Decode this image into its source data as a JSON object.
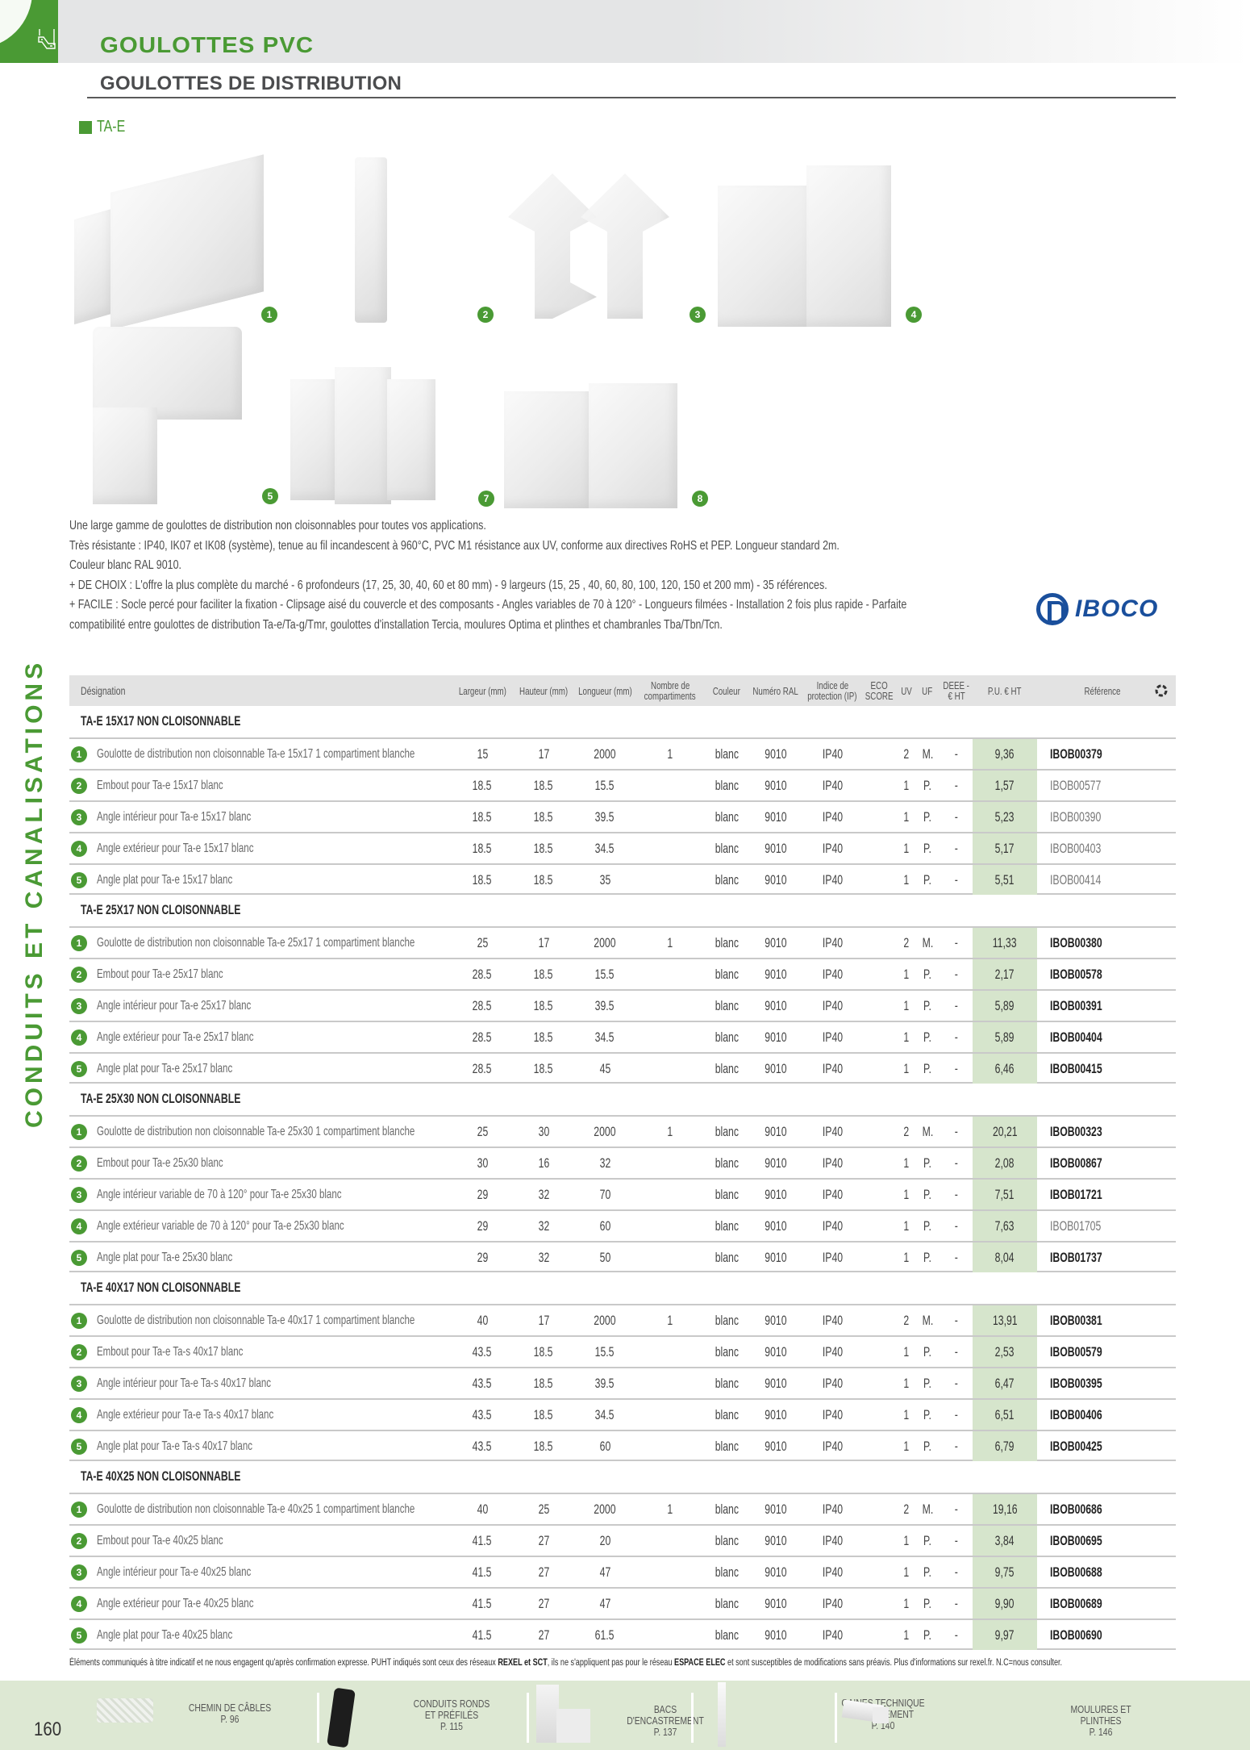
{
  "header": {
    "category_title": "GOULOTTES PVC",
    "section_title": "GOULOTTES DE DISTRIBUTION",
    "product_line": "TA-E",
    "side_label": "CONDUITS ET CANALISATIONS",
    "colors": {
      "brand_green": "#4a9a34",
      "price_bg": "#d6e5cc",
      "header_gray": "#e3e3e3",
      "iboco_blue": "#1a4f9c"
    }
  },
  "images": [
    {
      "badge": "1",
      "icon": "goulotte-image"
    },
    {
      "badge": "2",
      "icon": "embout-image"
    },
    {
      "badge": "3",
      "icon": "angle-interieur-image"
    },
    {
      "badge": "4",
      "icon": "angle-exterieur-image"
    },
    {
      "badge": "5",
      "icon": "angle-plat-image"
    },
    {
      "badge": "7",
      "icon": "angle-interieur-variable-image"
    },
    {
      "badge": "8",
      "icon": "angle-exterieur-variable-image"
    }
  ],
  "description": [
    "Une large gamme de goulottes de distribution non cloisonnables pour toutes vos applications.",
    "Très résistante : IP40, IK07 et IK08 (système), tenue au fil incandescent à 960°C, PVC M1 résistance aux UV, conforme aux directives RoHS et PEP. Longueur standard 2m.",
    "Couleur blanc RAL 9010.",
    "+ DE CHOIX : L'offre la plus complète du marché - 6 profondeurs (17, 25, 30, 40, 60 et 80 mm) - 9 largeurs (15, 25 , 40, 60, 80, 100, 120, 150 et 200 mm) - 35 références.",
    "+ FACILE : Socle percé pour faciliter la fixation - Clipsage aisé du couvercle et des composants - Angles variables de 70 à 120° - Longueurs filmées - Installation 2 fois plus rapide - Parfaite",
    "compatibilité entre goulottes de distribution Ta-e/Ta-g/Tmr, goulottes d'installation Tercia, moulures Optima et plinthes et chambranles Tba/Tbn/Tcn."
  ],
  "brand": {
    "name": "IBOCO"
  },
  "table": {
    "columns": {
      "designation": "Désignation",
      "largeur": "Largeur (mm)",
      "hauteur": "Hauteur (mm)",
      "longueur": "Longueur (mm)",
      "compartiments_1": "Nombre de",
      "compartiments_2": "compartiments",
      "couleur": "Couleur",
      "ral": "Numéro RAL",
      "ip_1": "Indice de",
      "ip_2": "protection (IP)",
      "eco_1": "ECO",
      "eco_2": "SCORE",
      "uv": "UV",
      "uf": "UF",
      "deee_1": "DEEE -",
      "deee_2": "€ HT",
      "pu": "P.U. € HT",
      "reference": "Référence"
    },
    "groups": [
      {
        "title": "TA-E 15X17 NON CLOISONNABLE",
        "rows": [
          {
            "n": "1",
            "designation": "Goulotte de distribution non cloisonnable Ta-e 15x17 1 compartiment blanche",
            "largeur": "15",
            "hauteur": "17",
            "longueur": "2000",
            "compartiments": "1",
            "couleur": "blanc",
            "ral": "9010",
            "ip": "IP40",
            "eco": "",
            "uv": "2",
            "uf": "M.",
            "deee": "-",
            "pu": "9,36",
            "reference": "IBOB00379",
            "ref_bold": true
          },
          {
            "n": "2",
            "designation": "Embout pour Ta-e 15x17 blanc",
            "largeur": "18.5",
            "hauteur": "18.5",
            "longueur": "15.5",
            "compartiments": "",
            "couleur": "blanc",
            "ral": "9010",
            "ip": "IP40",
            "eco": "",
            "uv": "1",
            "uf": "P.",
            "deee": "-",
            "pu": "1,57",
            "reference": "IBOB00577",
            "ref_bold": false
          },
          {
            "n": "3",
            "designation": "Angle intérieur pour Ta-e 15x17 blanc",
            "largeur": "18.5",
            "hauteur": "18.5",
            "longueur": "39.5",
            "compartiments": "",
            "couleur": "blanc",
            "ral": "9010",
            "ip": "IP40",
            "eco": "",
            "uv": "1",
            "uf": "P.",
            "deee": "-",
            "pu": "5,23",
            "reference": "IBOB00390",
            "ref_bold": false
          },
          {
            "n": "4",
            "designation": "Angle extérieur pour Ta-e 15x17 blanc",
            "largeur": "18.5",
            "hauteur": "18.5",
            "longueur": "34.5",
            "compartiments": "",
            "couleur": "blanc",
            "ral": "9010",
            "ip": "IP40",
            "eco": "",
            "uv": "1",
            "uf": "P.",
            "deee": "-",
            "pu": "5,17",
            "reference": "IBOB00403",
            "ref_bold": false
          },
          {
            "n": "5",
            "designation": "Angle plat pour Ta-e 15x17 blanc",
            "largeur": "18.5",
            "hauteur": "18.5",
            "longueur": "35",
            "compartiments": "",
            "couleur": "blanc",
            "ral": "9010",
            "ip": "IP40",
            "eco": "",
            "uv": "1",
            "uf": "P.",
            "deee": "-",
            "pu": "5,51",
            "reference": "IBOB00414",
            "ref_bold": false
          }
        ]
      },
      {
        "title": "TA-E 25X17 NON CLOISONNABLE",
        "rows": [
          {
            "n": "1",
            "designation": "Goulotte de distribution non cloisonnable Ta-e 25x17 1 compartiment blanche",
            "largeur": "25",
            "hauteur": "17",
            "longueur": "2000",
            "compartiments": "1",
            "couleur": "blanc",
            "ral": "9010",
            "ip": "IP40",
            "eco": "",
            "uv": "2",
            "uf": "M.",
            "deee": "-",
            "pu": "11,33",
            "reference": "IBOB00380",
            "ref_bold": true
          },
          {
            "n": "2",
            "designation": "Embout pour Ta-e 25x17 blanc",
            "largeur": "28.5",
            "hauteur": "18.5",
            "longueur": "15.5",
            "compartiments": "",
            "couleur": "blanc",
            "ral": "9010",
            "ip": "IP40",
            "eco": "",
            "uv": "1",
            "uf": "P.",
            "deee": "-",
            "pu": "2,17",
            "reference": "IBOB00578",
            "ref_bold": true
          },
          {
            "n": "3",
            "designation": "Angle intérieur pour Ta-e 25x17 blanc",
            "largeur": "28.5",
            "hauteur": "18.5",
            "longueur": "39.5",
            "compartiments": "",
            "couleur": "blanc",
            "ral": "9010",
            "ip": "IP40",
            "eco": "",
            "uv": "1",
            "uf": "P.",
            "deee": "-",
            "pu": "5,89",
            "reference": "IBOB00391",
            "ref_bold": true
          },
          {
            "n": "4",
            "designation": "Angle extérieur pour Ta-e 25x17 blanc",
            "largeur": "28.5",
            "hauteur": "18.5",
            "longueur": "34.5",
            "compartiments": "",
            "couleur": "blanc",
            "ral": "9010",
            "ip": "IP40",
            "eco": "",
            "uv": "1",
            "uf": "P.",
            "deee": "-",
            "pu": "5,89",
            "reference": "IBOB00404",
            "ref_bold": true
          },
          {
            "n": "5",
            "designation": "Angle plat pour Ta-e 25x17 blanc",
            "largeur": "28.5",
            "hauteur": "18.5",
            "longueur": "45",
            "compartiments": "",
            "couleur": "blanc",
            "ral": "9010",
            "ip": "IP40",
            "eco": "",
            "uv": "1",
            "uf": "P.",
            "deee": "-",
            "pu": "6,46",
            "reference": "IBOB00415",
            "ref_bold": true
          }
        ]
      },
      {
        "title": "TA-E 25X30 NON CLOISONNABLE",
        "rows": [
          {
            "n": "1",
            "designation": "Goulotte de distribution non cloisonnable Ta-e 25x30 1 compartiment blanche",
            "largeur": "25",
            "hauteur": "30",
            "longueur": "2000",
            "compartiments": "1",
            "couleur": "blanc",
            "ral": "9010",
            "ip": "IP40",
            "eco": "",
            "uv": "2",
            "uf": "M.",
            "deee": "-",
            "pu": "20,21",
            "reference": "IBOB00323",
            "ref_bold": true
          },
          {
            "n": "2",
            "designation": "Embout pour Ta-e 25x30 blanc",
            "largeur": "30",
            "hauteur": "16",
            "longueur": "32",
            "compartiments": "",
            "couleur": "blanc",
            "ral": "9010",
            "ip": "IP40",
            "eco": "",
            "uv": "1",
            "uf": "P.",
            "deee": "-",
            "pu": "2,08",
            "reference": "IBOB00867",
            "ref_bold": true
          },
          {
            "n": "3",
            "designation": "Angle intérieur variable de 70 à 120° pour Ta-e 25x30 blanc",
            "largeur": "29",
            "hauteur": "32",
            "longueur": "70",
            "compartiments": "",
            "couleur": "blanc",
            "ral": "9010",
            "ip": "IP40",
            "eco": "",
            "uv": "1",
            "uf": "P.",
            "deee": "-",
            "pu": "7,51",
            "reference": "IBOB01721",
            "ref_bold": true
          },
          {
            "n": "4",
            "designation": "Angle extérieur variable de 70 à 120° pour Ta-e 25x30 blanc",
            "largeur": "29",
            "hauteur": "32",
            "longueur": "60",
            "compartiments": "",
            "couleur": "blanc",
            "ral": "9010",
            "ip": "IP40",
            "eco": "",
            "uv": "1",
            "uf": "P.",
            "deee": "-",
            "pu": "7,63",
            "reference": "IBOB01705",
            "ref_bold": false
          },
          {
            "n": "5",
            "designation": "Angle plat pour Ta-e 25x30 blanc",
            "largeur": "29",
            "hauteur": "32",
            "longueur": "50",
            "compartiments": "",
            "couleur": "blanc",
            "ral": "9010",
            "ip": "IP40",
            "eco": "",
            "uv": "1",
            "uf": "P.",
            "deee": "-",
            "pu": "8,04",
            "reference": "IBOB01737",
            "ref_bold": true
          }
        ]
      },
      {
        "title": "TA-E 40X17 NON CLOISONNABLE",
        "rows": [
          {
            "n": "1",
            "designation": "Goulotte de distribution non cloisonnable Ta-e 40x17 1 compartiment blanche",
            "largeur": "40",
            "hauteur": "17",
            "longueur": "2000",
            "compartiments": "1",
            "couleur": "blanc",
            "ral": "9010",
            "ip": "IP40",
            "eco": "",
            "uv": "2",
            "uf": "M.",
            "deee": "-",
            "pu": "13,91",
            "reference": "IBOB00381",
            "ref_bold": true
          },
          {
            "n": "2",
            "designation": "Embout pour Ta-e Ta-s 40x17 blanc",
            "largeur": "43.5",
            "hauteur": "18.5",
            "longueur": "15.5",
            "compartiments": "",
            "couleur": "blanc",
            "ral": "9010",
            "ip": "IP40",
            "eco": "",
            "uv": "1",
            "uf": "P.",
            "deee": "-",
            "pu": "2,53",
            "reference": "IBOB00579",
            "ref_bold": true
          },
          {
            "n": "3",
            "designation": "Angle intérieur pour Ta-e Ta-s 40x17 blanc",
            "largeur": "43.5",
            "hauteur": "18.5",
            "longueur": "39.5",
            "compartiments": "",
            "couleur": "blanc",
            "ral": "9010",
            "ip": "IP40",
            "eco": "",
            "uv": "1",
            "uf": "P.",
            "deee": "-",
            "pu": "6,47",
            "reference": "IBOB00395",
            "ref_bold": true
          },
          {
            "n": "4",
            "designation": "Angle extérieur pour Ta-e Ta-s 40x17 blanc",
            "largeur": "43.5",
            "hauteur": "18.5",
            "longueur": "34.5",
            "compartiments": "",
            "couleur": "blanc",
            "ral": "9010",
            "ip": "IP40",
            "eco": "",
            "uv": "1",
            "uf": "P.",
            "deee": "-",
            "pu": "6,51",
            "reference": "IBOB00406",
            "ref_bold": true
          },
          {
            "n": "5",
            "designation": "Angle plat pour Ta-e Ta-s 40x17 blanc",
            "largeur": "43.5",
            "hauteur": "18.5",
            "longueur": "60",
            "compartiments": "",
            "couleur": "blanc",
            "ral": "9010",
            "ip": "IP40",
            "eco": "",
            "uv": "1",
            "uf": "P.",
            "deee": "-",
            "pu": "6,79",
            "reference": "IBOB00425",
            "ref_bold": true
          }
        ]
      },
      {
        "title": "TA-E 40X25 NON CLOISONNABLE",
        "rows": [
          {
            "n": "1",
            "designation": "Goulotte de distribution non cloisonnable Ta-e 40x25 1 compartiment blanche",
            "largeur": "40",
            "hauteur": "25",
            "longueur": "2000",
            "compartiments": "1",
            "couleur": "blanc",
            "ral": "9010",
            "ip": "IP40",
            "eco": "",
            "uv": "2",
            "uf": "M.",
            "deee": "-",
            "pu": "19,16",
            "reference": "IBOB00686",
            "ref_bold": true
          },
          {
            "n": "2",
            "designation": "Embout pour Ta-e 40x25 blanc",
            "largeur": "41.5",
            "hauteur": "27",
            "longueur": "20",
            "compartiments": "",
            "couleur": "blanc",
            "ral": "9010",
            "ip": "IP40",
            "eco": "",
            "uv": "1",
            "uf": "P.",
            "deee": "-",
            "pu": "3,84",
            "reference": "IBOB00695",
            "ref_bold": true
          },
          {
            "n": "3",
            "designation": "Angle intérieur pour Ta-e 40x25 blanc",
            "largeur": "41.5",
            "hauteur": "27",
            "longueur": "47",
            "compartiments": "",
            "couleur": "blanc",
            "ral": "9010",
            "ip": "IP40",
            "eco": "",
            "uv": "1",
            "uf": "P.",
            "deee": "-",
            "pu": "9,75",
            "reference": "IBOB00688",
            "ref_bold": true
          },
          {
            "n": "4",
            "designation": "Angle extérieur pour Ta-e 40x25 blanc",
            "largeur": "41.5",
            "hauteur": "27",
            "longueur": "47",
            "compartiments": "",
            "couleur": "blanc",
            "ral": "9010",
            "ip": "IP40",
            "eco": "",
            "uv": "1",
            "uf": "P.",
            "deee": "-",
            "pu": "9,90",
            "reference": "IBOB00689",
            "ref_bold": true
          },
          {
            "n": "5",
            "designation": "Angle plat pour Ta-e 40x25 blanc",
            "largeur": "41.5",
            "hauteur": "27",
            "longueur": "61.5",
            "compartiments": "",
            "couleur": "blanc",
            "ral": "9010",
            "ip": "IP40",
            "eco": "",
            "uv": "1",
            "uf": "P.",
            "deee": "-",
            "pu": "9,97",
            "reference": "IBOB00690",
            "ref_bold": true
          }
        ]
      }
    ]
  },
  "footer": {
    "disclaimer_a": "Éléments communiqués à titre indicatif et ne nous engagent qu'après confirmation expresse. PUHT indiqués sont ceux des réseaux ",
    "disclaimer_b": "REXEL et SCT",
    "disclaimer_c": ", ils ne s'appliquent pas pour le réseau ",
    "disclaimer_d": "ESPACE ELEC",
    "disclaimer_e": " et sont susceptibles de modifications sans préavis. Plus d'informations sur rexel.fr. N.C=nous consulter.",
    "page_number": "160",
    "nav": [
      {
        "line1": "CHEMIN DE CÂBLES",
        "line2": "",
        "page": "P. 96"
      },
      {
        "line1": "CONDUITS RONDS",
        "line2": "ET PRÉFILÉS",
        "page": "P. 115"
      },
      {
        "line1": "BACS D'ENCASTREMENT",
        "line2": "",
        "page": "P. 137"
      },
      {
        "line1": "GAINES TECHNIQUE",
        "line2": "DU LOGEMENT",
        "page": "P. 140"
      },
      {
        "line1": "MOULURES ET PLINTHES",
        "line2": "",
        "page": "P. 146"
      }
    ]
  }
}
